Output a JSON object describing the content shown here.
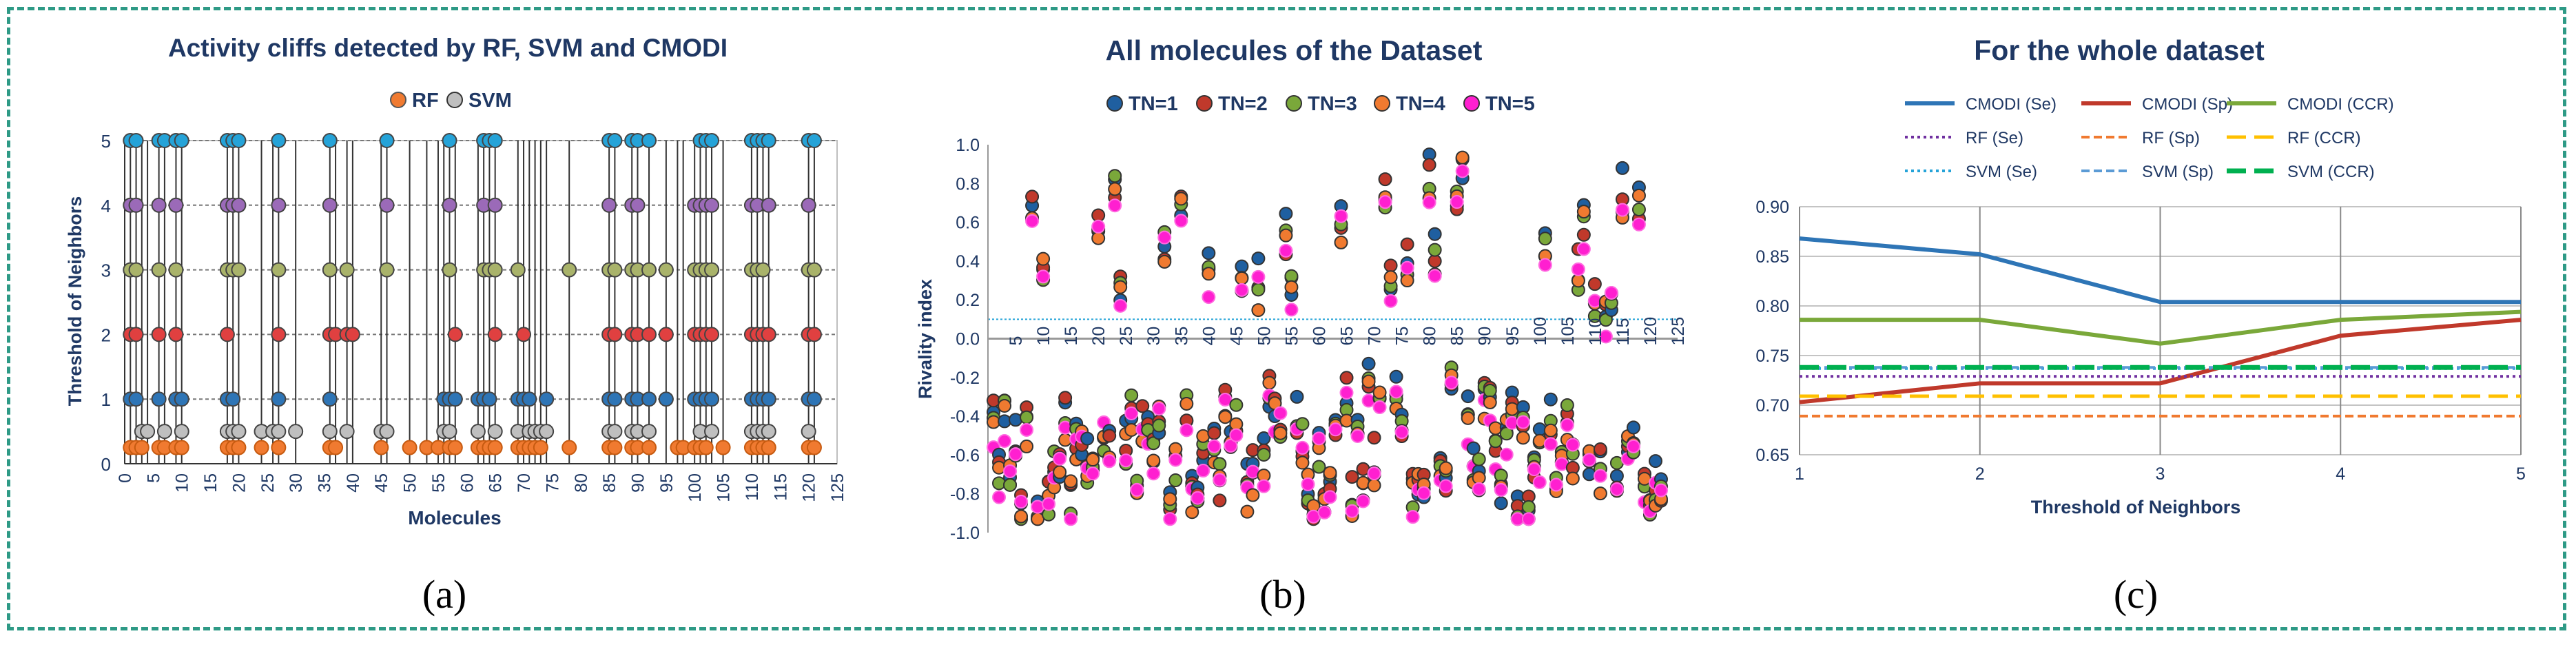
{
  "colors": {
    "frame": "#2e9a86",
    "title": "#1f3864"
  },
  "chart_data": [
    {
      "type": "scatter",
      "panel_caption": "(a)",
      "title": "Activity cliffs detected by RF, SVM and CMODI",
      "xlabel": "Molecules",
      "ylabel": "Threshold of Neighbors",
      "xlim": [
        0,
        125
      ],
      "ylim": [
        0,
        5
      ],
      "xticks": [
        0,
        5,
        10,
        15,
        20,
        25,
        30,
        35,
        40,
        45,
        50,
        55,
        60,
        65,
        70,
        75,
        80,
        85,
        90,
        95,
        100,
        105,
        110,
        115,
        120,
        125
      ],
      "yticks": [
        0,
        1,
        2,
        3,
        4,
        5
      ],
      "legend": [
        {
          "name": "RF",
          "color": "#f07a30"
        },
        {
          "name": "SVM",
          "color": "#bfbfbf"
        }
      ],
      "level_colors": {
        "0.25": "#f07a30",
        "0.5": "#bfbfbf",
        "1": "#2e75b6",
        "2": "#e04040",
        "3": "#a9b36a",
        "4": "#9b6ab8",
        "5": "#25a3d8"
      },
      "molecules": [
        {
          "x": 1,
          "levels": [
            0.25,
            1,
            2,
            3,
            4,
            5
          ]
        },
        {
          "x": 2,
          "levels": [
            0.25,
            1,
            2,
            3,
            4,
            5
          ]
        },
        {
          "x": 3,
          "levels": [
            0.25,
            0.5
          ]
        },
        {
          "x": 4,
          "levels": [
            0.5
          ]
        },
        {
          "x": 6,
          "levels": [
            0.25,
            1,
            2,
            3,
            4,
            5
          ]
        },
        {
          "x": 7,
          "levels": [
            0.25,
            0.5,
            5
          ]
        },
        {
          "x": 9,
          "levels": [
            0.25,
            1,
            2,
            3,
            4,
            5
          ]
        },
        {
          "x": 10,
          "levels": [
            0.25,
            0.5,
            1,
            5
          ]
        },
        {
          "x": 18,
          "levels": [
            0.25,
            0.5,
            1,
            2,
            3,
            4,
            5
          ]
        },
        {
          "x": 19,
          "levels": [
            0.25,
            0.5,
            1,
            3,
            4,
            5
          ]
        },
        {
          "x": 20,
          "levels": [
            0.25,
            0.5,
            3,
            4,
            5
          ]
        },
        {
          "x": 24,
          "levels": [
            0.25,
            0.5
          ]
        },
        {
          "x": 26,
          "levels": [
            0.5
          ]
        },
        {
          "x": 27,
          "levels": [
            0.25,
            0.5,
            1,
            2,
            3,
            4,
            5
          ]
        },
        {
          "x": 30,
          "levels": [
            0.5
          ]
        },
        {
          "x": 36,
          "levels": [
            0.25,
            0.5,
            1,
            2,
            3,
            4,
            5
          ]
        },
        {
          "x": 37,
          "levels": [
            0.25,
            2
          ]
        },
        {
          "x": 39,
          "levels": [
            0.5,
            2,
            3
          ]
        },
        {
          "x": 40,
          "levels": [
            2
          ]
        },
        {
          "x": 45,
          "levels": [
            0.25,
            0.5
          ]
        },
        {
          "x": 46,
          "levels": [
            0.5,
            3,
            4,
            5
          ]
        },
        {
          "x": 50,
          "levels": [
            0.25
          ]
        },
        {
          "x": 53,
          "levels": [
            0.25
          ]
        },
        {
          "x": 55,
          "levels": [
            0.25
          ]
        },
        {
          "x": 56,
          "levels": [
            0.5,
            1
          ]
        },
        {
          "x": 57,
          "levels": [
            0.25,
            0.5,
            1,
            3,
            4,
            5
          ]
        },
        {
          "x": 58,
          "levels": [
            0.25,
            1,
            2
          ]
        },
        {
          "x": 62,
          "levels": [
            0.25,
            0.5,
            1
          ]
        },
        {
          "x": 63,
          "levels": [
            0.25,
            1,
            3,
            4,
            5
          ]
        },
        {
          "x": 64,
          "levels": [
            0.25,
            1,
            3,
            5
          ]
        },
        {
          "x": 65,
          "levels": [
            0.25,
            0.5,
            2,
            3,
            4,
            5
          ]
        },
        {
          "x": 69,
          "levels": [
            0.25,
            0.5,
            1,
            3
          ]
        },
        {
          "x": 70,
          "levels": [
            0.25,
            1,
            2
          ]
        },
        {
          "x": 71,
          "levels": [
            0.25,
            0.5,
            1
          ]
        },
        {
          "x": 72,
          "levels": [
            0.25,
            0.5
          ]
        },
        {
          "x": 73,
          "levels": [
            0.25,
            0.5
          ]
        },
        {
          "x": 74,
          "levels": [
            0.5,
            1
          ]
        },
        {
          "x": 78,
          "levels": [
            0.25,
            3
          ]
        },
        {
          "x": 85,
          "levels": [
            0.25,
            0.5,
            1,
            2,
            3,
            4,
            5
          ]
        },
        {
          "x": 86,
          "levels": [
            0.25,
            0.5,
            1,
            2,
            3,
            5
          ]
        },
        {
          "x": 89,
          "levels": [
            0.25,
            0.5,
            1,
            2,
            3,
            4,
            5
          ]
        },
        {
          "x": 90,
          "levels": [
            0.25,
            0.5,
            1,
            2,
            3,
            4,
            5
          ]
        },
        {
          "x": 92,
          "levels": [
            0.25,
            0.5,
            1,
            2,
            3,
            5
          ]
        },
        {
          "x": 95,
          "levels": [
            1,
            2,
            3
          ]
        },
        {
          "x": 97,
          "levels": [
            0.25
          ]
        },
        {
          "x": 98,
          "levels": [
            0.25
          ]
        },
        {
          "x": 100,
          "levels": [
            0.25,
            1,
            2,
            3,
            4
          ]
        },
        {
          "x": 101,
          "levels": [
            0.25,
            0.5,
            1,
            2,
            3,
            4,
            5
          ]
        },
        {
          "x": 102,
          "levels": [
            0.25,
            1,
            2,
            3,
            4,
            5
          ]
        },
        {
          "x": 103,
          "levels": [
            0.5,
            1,
            2,
            3,
            4,
            5
          ]
        },
        {
          "x": 105,
          "levels": [
            0.25
          ]
        },
        {
          "x": 110,
          "levels": [
            0.25,
            0.5,
            1,
            2,
            3,
            4,
            5
          ]
        },
        {
          "x": 111,
          "levels": [
            0.25,
            0.5,
            1,
            2,
            3,
            4,
            5
          ]
        },
        {
          "x": 112,
          "levels": [
            0.25,
            0.5,
            1,
            2,
            3,
            5
          ]
        },
        {
          "x": 113,
          "levels": [
            0.25,
            0.5,
            1,
            2,
            4,
            5
          ]
        },
        {
          "x": 120,
          "levels": [
            0.25,
            0.5,
            1,
            2,
            3,
            4,
            5
          ]
        },
        {
          "x": 121,
          "levels": [
            0.25,
            1,
            2,
            3,
            5
          ]
        }
      ]
    },
    {
      "type": "scatter",
      "panel_caption": "(b)",
      "title": "All molecules of the Dataset",
      "xlabel": "",
      "ylabel": "Rivality index",
      "xlim": [
        0,
        125
      ],
      "ylim": [
        -1.0,
        1.0
      ],
      "xticks": [
        5,
        10,
        15,
        20,
        25,
        30,
        35,
        40,
        45,
        50,
        55,
        60,
        65,
        70,
        75,
        80,
        85,
        90,
        95,
        100,
        105,
        110,
        115,
        120,
        125
      ],
      "yticks": [
        -1.0,
        -0.8,
        -0.6,
        -0.4,
        -0.2,
        0.0,
        0.2,
        0.4,
        0.6,
        0.8,
        1.0
      ],
      "reference_line_y": 0.1,
      "series": [
        {
          "name": "TN=1",
          "color": "#1f5fa0"
        },
        {
          "name": "TN=2",
          "color": "#c0392b"
        },
        {
          "name": "TN=3",
          "color": "#7aa83a"
        },
        {
          "name": "TN=4",
          "color": "#f07a30"
        },
        {
          "name": "TN=5",
          "color": "#ff1fd0"
        }
      ]
    },
    {
      "type": "line",
      "panel_caption": "(c)",
      "title": "For the whole dataset",
      "xlabel": "Threshold of Neighbors",
      "ylabel": "",
      "x": [
        1,
        2,
        3,
        4,
        5
      ],
      "xlim": [
        1,
        5
      ],
      "ylim": [
        0.65,
        0.9
      ],
      "yticks": [
        0.65,
        0.7,
        0.75,
        0.8,
        0.85,
        0.9
      ],
      "series": [
        {
          "name": "CMODI (Se)",
          "color": "#2e75b6",
          "dash": "solid",
          "width": 6,
          "values": [
            0.868,
            0.852,
            0.804,
            0.804,
            0.804
          ]
        },
        {
          "name": "CMODI (Sp)",
          "color": "#c0392b",
          "dash": "solid",
          "width": 6,
          "values": [
            0.703,
            0.722,
            0.722,
            0.77,
            0.786
          ]
        },
        {
          "name": "CMODI (CCR)",
          "color": "#7aa83a",
          "dash": "solid",
          "width": 6,
          "values": [
            0.786,
            0.786,
            0.762,
            0.786,
            0.794
          ]
        },
        {
          "name": "RF (Se)",
          "color": "#7030a0",
          "dash": "dot",
          "width": 4,
          "values": [
            0.729,
            0.729,
            0.729,
            0.729,
            0.729
          ]
        },
        {
          "name": "RF (Sp)",
          "color": "#f07a30",
          "dash": "dash",
          "width": 4,
          "values": [
            0.689,
            0.689,
            0.689,
            0.689,
            0.689
          ]
        },
        {
          "name": "RF (CCR)",
          "color": "#ffc000",
          "dash": "longdash",
          "width": 5,
          "values": [
            0.709,
            0.709,
            0.709,
            0.709,
            0.709
          ]
        },
        {
          "name": "SVM (Se)",
          "color": "#25a3d8",
          "dash": "dot",
          "width": 4,
          "values": [
            0.737,
            0.737,
            0.737,
            0.737,
            0.737
          ]
        },
        {
          "name": "SVM (Sp)",
          "color": "#5b9bd5",
          "dash": "dash",
          "width": 4,
          "values": [
            0.738,
            0.738,
            0.738,
            0.738,
            0.738
          ]
        },
        {
          "name": "SVM (CCR)",
          "color": "#00b050",
          "dash": "longdash",
          "width": 7,
          "values": [
            0.738,
            0.738,
            0.738,
            0.738,
            0.738
          ]
        }
      ]
    }
  ]
}
